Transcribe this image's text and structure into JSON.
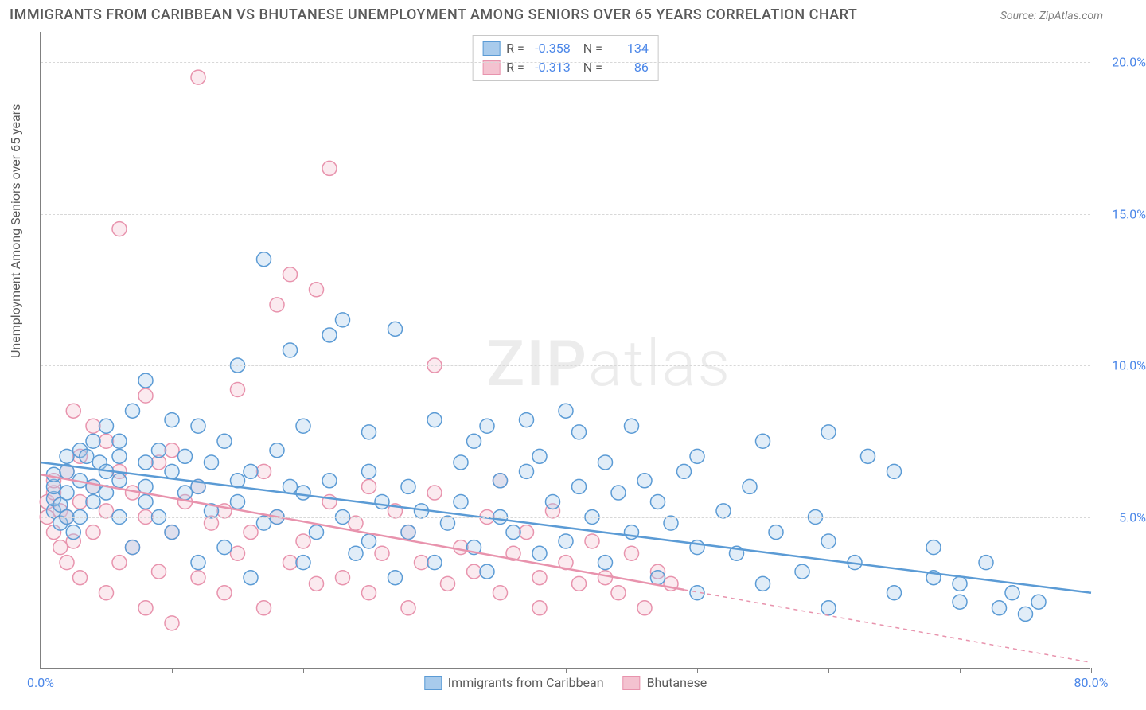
{
  "title": "IMMIGRANTS FROM CARIBBEAN VS BHUTANESE UNEMPLOYMENT AMONG SENIORS OVER 65 YEARS CORRELATION CHART",
  "source": "Source: ZipAtlas.com",
  "y_axis_label": "Unemployment Among Seniors over 65 years",
  "watermark_a": "ZIP",
  "watermark_b": "atlas",
  "chart": {
    "type": "scatter",
    "xlim": [
      0,
      80
    ],
    "ylim": [
      0,
      21
    ],
    "x_ticks": [
      0,
      10,
      20,
      30,
      40,
      50,
      60,
      70,
      80
    ],
    "x_tick_labels": {
      "0": "0.0%",
      "80": "80.0%"
    },
    "y_ticks": [
      5,
      10,
      15,
      20
    ],
    "y_tick_labels": {
      "5": "5.0%",
      "10": "10.0%",
      "15": "15.0%",
      "20": "20.0%"
    },
    "grid_color": "#d8d8d8",
    "axis_color": "#808080",
    "background_color": "#ffffff",
    "marker_radius": 9,
    "marker_stroke_width": 1.5,
    "marker_fill_opacity": 0.35,
    "trend_line_width": 2.5,
    "series": [
      {
        "name": "Immigrants from Caribbean",
        "color_stroke": "#5b9bd5",
        "color_fill": "#a8cbec",
        "R": "-0.358",
        "N": "134",
        "trend": {
          "y_at_x0": 6.8,
          "y_at_x80": 2.5,
          "solid_until_x": 80
        },
        "points": [
          [
            1,
            5.2
          ],
          [
            1,
            5.6
          ],
          [
            1,
            6.0
          ],
          [
            1,
            6.4
          ],
          [
            1.5,
            4.8
          ],
          [
            1.5,
            5.4
          ],
          [
            2,
            5.0
          ],
          [
            2,
            5.8
          ],
          [
            2,
            6.5
          ],
          [
            2,
            7.0
          ],
          [
            2.5,
            4.5
          ],
          [
            3,
            5.0
          ],
          [
            3,
            6.2
          ],
          [
            3,
            7.2
          ],
          [
            3.5,
            7.0
          ],
          [
            4,
            5.5
          ],
          [
            4,
            6.0
          ],
          [
            4,
            7.5
          ],
          [
            4.5,
            6.8
          ],
          [
            5,
            5.8
          ],
          [
            5,
            6.5
          ],
          [
            5,
            8.0
          ],
          [
            6,
            5.0
          ],
          [
            6,
            6.2
          ],
          [
            6,
            7.0
          ],
          [
            6,
            7.5
          ],
          [
            7,
            4.0
          ],
          [
            7,
            8.5
          ],
          [
            8,
            5.5
          ],
          [
            8,
            6.0
          ],
          [
            8,
            6.8
          ],
          [
            8,
            9.5
          ],
          [
            9,
            5.0
          ],
          [
            9,
            7.2
          ],
          [
            10,
            4.5
          ],
          [
            10,
            6.5
          ],
          [
            10,
            8.2
          ],
          [
            11,
            5.8
          ],
          [
            11,
            7.0
          ],
          [
            12,
            3.5
          ],
          [
            12,
            6.0
          ],
          [
            12,
            8.0
          ],
          [
            13,
            5.2
          ],
          [
            13,
            6.8
          ],
          [
            14,
            4.0
          ],
          [
            14,
            7.5
          ],
          [
            15,
            5.5
          ],
          [
            15,
            6.2
          ],
          [
            15,
            10.0
          ],
          [
            16,
            3.0
          ],
          [
            16,
            6.5
          ],
          [
            17,
            4.8
          ],
          [
            17,
            13.5
          ],
          [
            18,
            5.0
          ],
          [
            18,
            7.2
          ],
          [
            19,
            6.0
          ],
          [
            19,
            10.5
          ],
          [
            20,
            3.5
          ],
          [
            20,
            5.8
          ],
          [
            20,
            8.0
          ],
          [
            21,
            4.5
          ],
          [
            22,
            6.2
          ],
          [
            22,
            11.0
          ],
          [
            23,
            5.0
          ],
          [
            23,
            11.5
          ],
          [
            24,
            3.8
          ],
          [
            25,
            4.2
          ],
          [
            25,
            6.5
          ],
          [
            25,
            7.8
          ],
          [
            26,
            5.5
          ],
          [
            27,
            3.0
          ],
          [
            27,
            11.2
          ],
          [
            28,
            4.5
          ],
          [
            28,
            6.0
          ],
          [
            29,
            5.2
          ],
          [
            30,
            3.5
          ],
          [
            30,
            8.2
          ],
          [
            31,
            4.8
          ],
          [
            32,
            5.5
          ],
          [
            32,
            6.8
          ],
          [
            33,
            4.0
          ],
          [
            33,
            7.5
          ],
          [
            34,
            3.2
          ],
          [
            34,
            8.0
          ],
          [
            35,
            5.0
          ],
          [
            35,
            6.2
          ],
          [
            36,
            4.5
          ],
          [
            37,
            6.5
          ],
          [
            37,
            8.2
          ],
          [
            38,
            3.8
          ],
          [
            38,
            7.0
          ],
          [
            39,
            5.5
          ],
          [
            40,
            4.2
          ],
          [
            40,
            8.5
          ],
          [
            41,
            6.0
          ],
          [
            41,
            7.8
          ],
          [
            42,
            5.0
          ],
          [
            43,
            3.5
          ],
          [
            43,
            6.8
          ],
          [
            44,
            5.8
          ],
          [
            45,
            4.5
          ],
          [
            45,
            8.0
          ],
          [
            46,
            6.2
          ],
          [
            47,
            3.0
          ],
          [
            47,
            5.5
          ],
          [
            48,
            4.8
          ],
          [
            49,
            6.5
          ],
          [
            50,
            2.5
          ],
          [
            50,
            4.0
          ],
          [
            50,
            7.0
          ],
          [
            52,
            5.2
          ],
          [
            53,
            3.8
          ],
          [
            54,
            6.0
          ],
          [
            55,
            2.8
          ],
          [
            55,
            7.5
          ],
          [
            56,
            4.5
          ],
          [
            58,
            3.2
          ],
          [
            59,
            5.0
          ],
          [
            60,
            2.0
          ],
          [
            60,
            4.2
          ],
          [
            60,
            7.8
          ],
          [
            62,
            3.5
          ],
          [
            63,
            7.0
          ],
          [
            65,
            2.5
          ],
          [
            65,
            6.5
          ],
          [
            68,
            3.0
          ],
          [
            68,
            4.0
          ],
          [
            70,
            2.2
          ],
          [
            70,
            2.8
          ],
          [
            72,
            3.5
          ],
          [
            73,
            2.0
          ],
          [
            74,
            2.5
          ],
          [
            75,
            1.8
          ],
          [
            76,
            2.2
          ]
        ]
      },
      {
        "name": "Bhutanese",
        "color_stroke": "#e893ad",
        "color_fill": "#f4c2d0",
        "R": "-0.313",
        "N": "86",
        "trend": {
          "y_at_x0": 6.4,
          "y_at_x80": 0.2,
          "solid_until_x": 49
        },
        "points": [
          [
            0.5,
            5.0
          ],
          [
            0.5,
            5.5
          ],
          [
            1,
            4.5
          ],
          [
            1,
            5.8
          ],
          [
            1,
            6.2
          ],
          [
            1.5,
            4.0
          ],
          [
            1.5,
            5.2
          ],
          [
            2,
            3.5
          ],
          [
            2,
            5.0
          ],
          [
            2,
            6.5
          ],
          [
            2.5,
            4.2
          ],
          [
            2.5,
            8.5
          ],
          [
            3,
            3.0
          ],
          [
            3,
            5.5
          ],
          [
            3,
            7.0
          ],
          [
            4,
            4.5
          ],
          [
            4,
            6.0
          ],
          [
            4,
            8.0
          ],
          [
            5,
            2.5
          ],
          [
            5,
            5.2
          ],
          [
            5,
            7.5
          ],
          [
            6,
            3.5
          ],
          [
            6,
            6.5
          ],
          [
            6,
            14.5
          ],
          [
            7,
            4.0
          ],
          [
            7,
            5.8
          ],
          [
            8,
            2.0
          ],
          [
            8,
            5.0
          ],
          [
            8,
            9.0
          ],
          [
            9,
            3.2
          ],
          [
            9,
            6.8
          ],
          [
            10,
            1.5
          ],
          [
            10,
            4.5
          ],
          [
            10,
            7.2
          ],
          [
            11,
            5.5
          ],
          [
            12,
            3.0
          ],
          [
            12,
            6.0
          ],
          [
            12,
            19.5
          ],
          [
            13,
            4.8
          ],
          [
            14,
            2.5
          ],
          [
            14,
            5.2
          ],
          [
            15,
            3.8
          ],
          [
            15,
            9.2
          ],
          [
            16,
            4.5
          ],
          [
            17,
            2.0
          ],
          [
            17,
            6.5
          ],
          [
            18,
            5.0
          ],
          [
            18,
            12.0
          ],
          [
            19,
            3.5
          ],
          [
            19,
            13.0
          ],
          [
            20,
            4.2
          ],
          [
            21,
            2.8
          ],
          [
            21,
            12.5
          ],
          [
            22,
            5.5
          ],
          [
            22,
            16.5
          ],
          [
            23,
            3.0
          ],
          [
            24,
            4.8
          ],
          [
            25,
            2.5
          ],
          [
            25,
            6.0
          ],
          [
            26,
            3.8
          ],
          [
            27,
            5.2
          ],
          [
            28,
            2.0
          ],
          [
            28,
            4.5
          ],
          [
            29,
            3.5
          ],
          [
            30,
            5.8
          ],
          [
            30,
            10.0
          ],
          [
            31,
            2.8
          ],
          [
            32,
            4.0
          ],
          [
            33,
            3.2
          ],
          [
            34,
            5.0
          ],
          [
            35,
            2.5
          ],
          [
            35,
            6.2
          ],
          [
            36,
            3.8
          ],
          [
            37,
            4.5
          ],
          [
            38,
            2.0
          ],
          [
            38,
            3.0
          ],
          [
            39,
            5.2
          ],
          [
            40,
            3.5
          ],
          [
            41,
            2.8
          ],
          [
            42,
            4.2
          ],
          [
            43,
            3.0
          ],
          [
            44,
            2.5
          ],
          [
            45,
            3.8
          ],
          [
            46,
            2.0
          ],
          [
            47,
            3.2
          ],
          [
            48,
            2.8
          ]
        ]
      }
    ]
  }
}
